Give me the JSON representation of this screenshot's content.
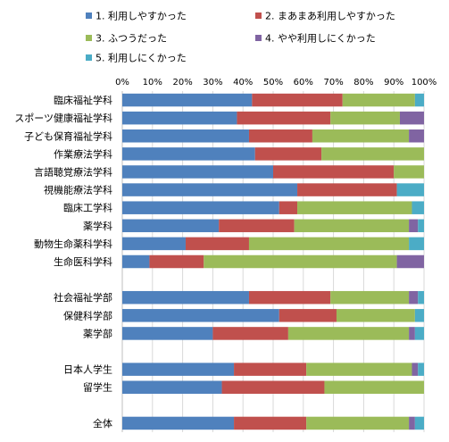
{
  "chart_data": {
    "type": "bar",
    "orientation": "horizontal",
    "stacked": "percent",
    "legend_position": "top",
    "grid": true,
    "xlim": [
      0,
      100
    ],
    "xticks": [
      "0%",
      "10%",
      "20%",
      "30%",
      "40%",
      "50%",
      "60%",
      "70%",
      "80%",
      "90%",
      "100%"
    ],
    "categories": [
      "臨床福祉学科",
      "スポーツ健康福祉学科",
      "子ども保育福祉学科",
      "作業療法学科",
      "言語聴覚療法学科",
      "視機能療法学科",
      "臨床工学科",
      "薬学科",
      "動物生命薬科学科",
      "生命医科学科",
      "",
      "社会福祉学部",
      "保健科学部",
      "薬学部",
      "",
      "日本人学生",
      "留学生",
      "",
      "全体"
    ],
    "series": [
      {
        "name": "1. 利用しやすかった",
        "color": "#4f81bd",
        "values": [
          43,
          38,
          42,
          44,
          50,
          58,
          52,
          32,
          21,
          9,
          null,
          42,
          52,
          30,
          null,
          37,
          33,
          null,
          37
        ]
      },
      {
        "name": "2. まあまあ利用しやすかった",
        "color": "#c0504d",
        "values": [
          30,
          31,
          21,
          22,
          40,
          33,
          6,
          25,
          21,
          18,
          null,
          27,
          19,
          25,
          null,
          24,
          34,
          null,
          24
        ]
      },
      {
        "name": "3. ふつうだった",
        "color": "#9bbb59",
        "values": [
          24,
          23,
          32,
          34,
          10,
          0,
          38,
          38,
          53,
          64,
          null,
          26,
          26,
          40,
          null,
          35,
          33,
          null,
          34
        ]
      },
      {
        "name": "4. やや利用しにくかった",
        "color": "#8064a2",
        "values": [
          0,
          8,
          5,
          0,
          0,
          0,
          0,
          3,
          0,
          9,
          null,
          3,
          0,
          2,
          null,
          2,
          0,
          null,
          2
        ]
      },
      {
        "name": "5. 利用しにくかった",
        "color": "#4bacc6",
        "values": [
          3,
          0,
          0,
          0,
          0,
          9,
          4,
          2,
          5,
          0,
          null,
          2,
          3,
          3,
          null,
          2,
          0,
          null,
          3
        ]
      }
    ]
  }
}
